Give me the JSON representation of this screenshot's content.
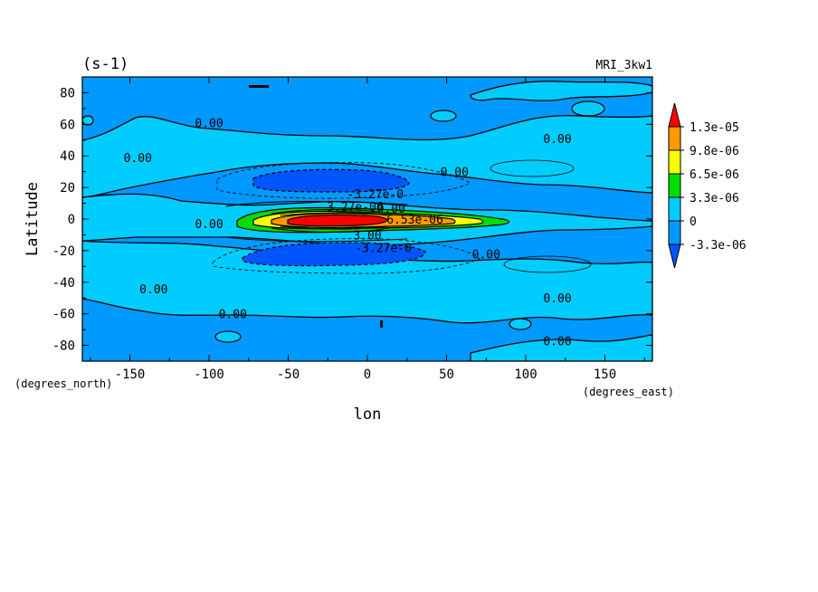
{
  "chart_data": {
    "type": "heatmap",
    "title": "(s-1)",
    "subtitle": "MRI_3kw1",
    "xlabel": "lon",
    "ylabel": "Latitude",
    "x_units": "(degrees_east)",
    "y_units": "(degrees_north)",
    "xlim": [
      -180,
      180
    ],
    "ylim": [
      -90,
      90
    ],
    "x_ticks": [
      "-150",
      "-100",
      "-50",
      "0",
      "50",
      "100",
      "150"
    ],
    "x_tick_values": [
      -150,
      -100,
      -50,
      0,
      50,
      100,
      150
    ],
    "y_ticks": [
      "80",
      "60",
      "40",
      "20",
      "0",
      "-20",
      "-40",
      "-60",
      "-80"
    ],
    "y_tick_values": [
      80,
      60,
      40,
      20,
      0,
      -20,
      -40,
      -60,
      -80
    ],
    "grid": false,
    "colorbar": {
      "levels": [
        "1.3e-05",
        "9.8e-06",
        "6.5e-06",
        "3.3e-06",
        "0",
        "-3.3e-06"
      ],
      "colors": [
        "#ff0000",
        "#ff9900",
        "#ffff00",
        "#00dd00",
        "#00ccff",
        "#0099ff",
        "#0055ff"
      ],
      "extend": "both",
      "placement": "right"
    },
    "contour_labels": [
      {
        "text": "0.00",
        "lon": -145,
        "lat": 39
      },
      {
        "text": "0.00",
        "lon": -100,
        "lat": 61
      },
      {
        "text": "0.00",
        "lon": 55,
        "lat": 30
      },
      {
        "text": "0.00",
        "lon": 120,
        "lat": 51
      },
      {
        "text": "0.00",
        "lon": -100,
        "lat": -3
      },
      {
        "text": "-3.27e-0",
        "lon": 5,
        "lat": 16
      },
      {
        "text": "-3.27e-06",
        "lon": -10,
        "lat": 8
      },
      {
        "text": "0.00",
        "lon": 15,
        "lat": 7
      },
      {
        "text": "-3.27e-0",
        "lon": 10,
        "lat": -18
      },
      {
        "text": "3.00",
        "lon": 0,
        "lat": -10
      },
      {
        "text": "6.53e-06",
        "lon": 30,
        "lat": 0
      },
      {
        "text": "0.00",
        "lon": 75,
        "lat": -22
      },
      {
        "text": "0.00",
        "lon": -135,
        "lat": -44
      },
      {
        "text": "0.00",
        "lon": -85,
        "lat": -60
      },
      {
        "text": "0.00",
        "lon": 120,
        "lat": -50
      },
      {
        "text": "0.00",
        "lon": 120,
        "lat": -77
      }
    ]
  }
}
